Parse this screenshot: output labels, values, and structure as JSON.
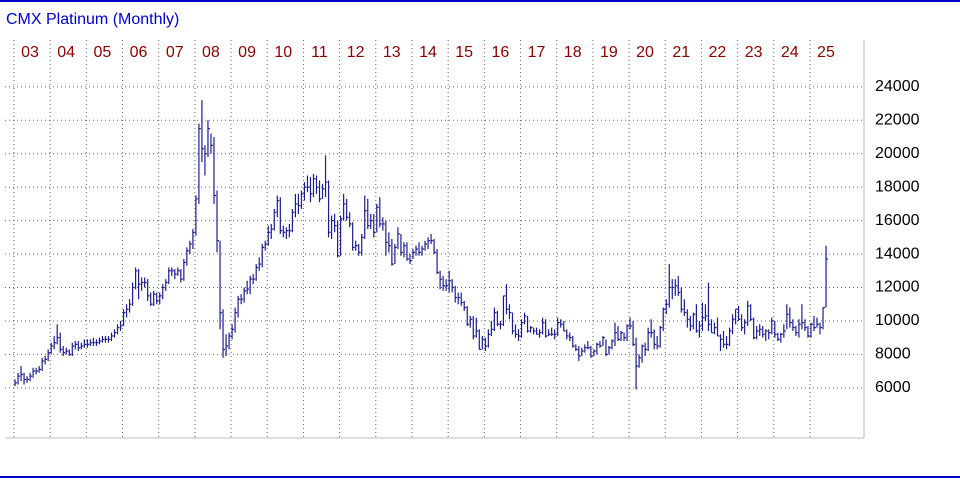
{
  "chart_data": {
    "type": "ohlc",
    "title": "CMX Platinum (Monthly)",
    "color": "#1c1c8e",
    "grid": true,
    "ylim": [
      3000,
      26800
    ],
    "yticks": [
      6000,
      8000,
      10000,
      12000,
      14000,
      16000,
      18000,
      20000,
      22000,
      24000
    ],
    "xticks": [
      {
        "value": 0,
        "label": "03"
      },
      {
        "value": 12,
        "label": "04"
      },
      {
        "value": 24,
        "label": "05"
      },
      {
        "value": 36,
        "label": "06"
      },
      {
        "value": 48,
        "label": "07"
      },
      {
        "value": 60,
        "label": "08"
      },
      {
        "value": 72,
        "label": "09"
      },
      {
        "value": 84,
        "label": "10"
      },
      {
        "value": 96,
        "label": "11"
      },
      {
        "value": 108,
        "label": "12"
      },
      {
        "value": 120,
        "label": "13"
      },
      {
        "value": 132,
        "label": "14"
      },
      {
        "value": 144,
        "label": "15"
      },
      {
        "value": 156,
        "label": "16"
      },
      {
        "value": 168,
        "label": "17"
      },
      {
        "value": 180,
        "label": "18"
      },
      {
        "value": 192,
        "label": "19"
      },
      {
        "value": 204,
        "label": "20"
      },
      {
        "value": 216,
        "label": "21"
      },
      {
        "value": 228,
        "label": "22"
      },
      {
        "value": 240,
        "label": "23"
      },
      {
        "value": 252,
        "label": "24"
      },
      {
        "value": 264,
        "label": "25"
      }
    ],
    "high": [
      6500,
      6900,
      7300,
      6900,
      6700,
      6900,
      7200,
      7200,
      7300,
      7800,
      7900,
      8300,
      8700,
      9100,
      9800,
      9300,
      8500,
      8400,
      8300,
      8700,
      8800,
      8800,
      8700,
      8900,
      8900,
      8900,
      9000,
      8900,
      9000,
      9100,
      9100,
      9100,
      9300,
      9500,
      9800,
      10000,
      10700,
      11000,
      11300,
      12300,
      13200,
      13100,
      12600,
      12600,
      12500,
      11700,
      11800,
      11700,
      11700,
      12200,
      12500,
      13200,
      13200,
      13100,
      13200,
      13100,
      13700,
      14400,
      14800,
      15500,
      17500,
      21800,
      23200,
      20500,
      22000,
      21200,
      21000,
      17800,
      14800,
      10700,
      9200,
      9300,
      9800,
      10800,
      11500,
      11600,
      12000,
      12400,
      12700,
      12800,
      13400,
      13800,
      14600,
      14800,
      15700,
      15800,
      16700,
      17500,
      17400,
      15700,
      15600,
      15800,
      16700,
      17600,
      17600,
      17800,
      18300,
      18700,
      18600,
      18800,
      18700,
      18400,
      18200,
      19900,
      18400,
      16300,
      16400,
      16000,
      16300,
      17600,
      17300,
      16500,
      15900,
      14800,
      14600,
      15200,
      17500,
      17300,
      16400,
      16400,
      17000,
      17400,
      16200,
      16000,
      15300,
      14900,
      14600,
      15600,
      15200,
      14700,
      14700,
      14000,
      14300,
      14500,
      14700,
      14500,
      14800,
      15000,
      15200,
      14900,
      14300,
      13000,
      12700,
      12500,
      13000,
      12500,
      12100,
      11700,
      11700,
      11200,
      10900,
      10300,
      10300,
      10200,
      9500,
      9100,
      9000,
      9500,
      10000,
      10800,
      10600,
      10000,
      11500,
      12200,
      11000,
      10500,
      9800,
      9500,
      10100,
      10500,
      10300,
      9700,
      9600,
      9600,
      9500,
      10200,
      10100,
      9500,
      9600,
      9500,
      10200,
      10100,
      10000,
      9500,
      9300,
      9100,
      8600,
      8500,
      8400,
      8600,
      8800,
      8500,
      8300,
      8700,
      8800,
      9100,
      8900,
      8500,
      8900,
      9900,
      9700,
      9400,
      9300,
      9800,
      10200,
      10000,
      9000,
      8000,
      8600,
      8700,
      9600,
      10100,
      9500,
      9100,
      9700,
      10800,
      11300,
      13400,
      12500,
      12500,
      12700,
      12000,
      11300,
      10700,
      10300,
      10500,
      11000,
      10000,
      11100,
      11000,
      12300,
      10100,
      9900,
      10200,
      9200,
      9400,
      9100,
      9600,
      10400,
      10700,
      10900,
      10400,
      10100,
      11200,
      11000,
      10200,
      9700,
      9800,
      9700,
      9500,
      9500,
      10200,
      10000,
      9300,
      9300,
      9800,
      11000,
      10800,
      10100,
      9700,
      10100,
      11000,
      10100,
      9700,
      9900,
      10300,
      10200,
      9900,
      10800,
      14500
    ],
    "low": [
      6100,
      6200,
      6400,
      6200,
      6300,
      6400,
      6600,
      6800,
      6900,
      7000,
      7400,
      7600,
      8000,
      8300,
      8600,
      8100,
      7900,
      8000,
      7900,
      7900,
      8300,
      8200,
      8300,
      8400,
      8400,
      8500,
      8500,
      8500,
      8600,
      8700,
      8700,
      8700,
      8800,
      9000,
      9200,
      9400,
      9700,
      10200,
      10500,
      10900,
      11900,
      11300,
      11800,
      12000,
      11200,
      10900,
      10900,
      11000,
      11000,
      11300,
      11800,
      12200,
      12700,
      12500,
      12700,
      12300,
      12400,
      13300,
      14000,
      14300,
      15100,
      17000,
      19500,
      18700,
      19800,
      20000,
      17000,
      14100,
      9500,
      7800,
      7900,
      8300,
      8900,
      9300,
      10200,
      11000,
      11100,
      11600,
      11600,
      12200,
      12400,
      13000,
      13200,
      14200,
      14500,
      14900,
      15400,
      16200,
      15200,
      15000,
      14900,
      15000,
      15300,
      16200,
      16400,
      16700,
      17200,
      17700,
      17100,
      17400,
      17600,
      17100,
      17300,
      17400,
      15000,
      14900,
      15300,
      13800,
      13900,
      16000,
      16000,
      15600,
      14200,
      14200,
      13900,
      13900,
      14900,
      15500,
      15500,
      15000,
      15300,
      15600,
      15400,
      13900,
      14100,
      13300,
      13400,
      14300,
      13900,
      13800,
      13600,
      13400,
      13700,
      13900,
      13900,
      13900,
      14200,
      14300,
      14600,
      14000,
      12800,
      11900,
      11800,
      11800,
      11700,
      11700,
      11100,
      11000,
      10900,
      10600,
      9700,
      9600,
      8900,
      9000,
      8300,
      8300,
      8200,
      8400,
      9100,
      9400,
      9700,
      9500,
      9700,
      10400,
      10100,
      9200,
      9000,
      8800,
      9000,
      9800,
      9300,
      9300,
      9200,
      9200,
      9000,
      9200,
      9000,
      9100,
      9100,
      8900,
      9100,
      9600,
      9400,
      8900,
      8800,
      8400,
      8200,
      7600,
      7900,
      8100,
      8300,
      7800,
      7900,
      8000,
      8400,
      8500,
      7900,
      8000,
      8300,
      8500,
      8800,
      8800,
      8800,
      8800,
      9500,
      8500,
      5900,
      7200,
      7500,
      7900,
      8200,
      9000,
      8300,
      8300,
      8400,
      9400,
      10400,
      10800,
      11300,
      11500,
      11500,
      10500,
      10300,
      9600,
      9400,
      9500,
      9300,
      9000,
      9400,
      10000,
      9400,
      9300,
      9200,
      9100,
      8200,
      8400,
      8300,
      8500,
      9200,
      9800,
      10000,
      9400,
      9200,
      9700,
      10000,
      8900,
      8900,
      9100,
      9000,
      8800,
      8900,
      9200,
      9000,
      8800,
      8700,
      9000,
      9500,
      9600,
      9400,
      9100,
      9000,
      9500,
      9400,
      9000,
      9000,
      9400,
      9600,
      9200,
      9500,
      10800
    ],
    "close": [
      6300,
      6700,
      6800,
      6500,
      6500,
      6700,
      7000,
      7000,
      7100,
      7600,
      7700,
      8100,
      8500,
      8700,
      9000,
      8300,
      8100,
      8200,
      8000,
      8500,
      8600,
      8400,
      8500,
      8600,
      8600,
      8700,
      8700,
      8700,
      8800,
      8900,
      8900,
      8900,
      9100,
      9300,
      9600,
      9700,
      10500,
      10700,
      11000,
      12000,
      13000,
      12200,
      12300,
      12300,
      11500,
      11000,
      11600,
      11200,
      11500,
      12000,
      12300,
      13000,
      13000,
      12800,
      13000,
      12500,
      13500,
      14200,
      14600,
      15300,
      17300,
      21500,
      20300,
      20000,
      21500,
      20500,
      17500,
      14800,
      10500,
      8300,
      8500,
      9100,
      9500,
      10500,
      11300,
      11300,
      11800,
      11900,
      12500,
      12500,
      13200,
      13400,
      14400,
      14600,
      15300,
      15500,
      16500,
      17200,
      15400,
      15300,
      15400,
      15400,
      16500,
      17000,
      16900,
      17600,
      18000,
      18000,
      17600,
      18500,
      18000,
      17300,
      17900,
      18300,
      15300,
      16000,
      15700,
      13900,
      16100,
      17000,
      16200,
      15800,
      14400,
      14500,
      14100,
      15000,
      16600,
      15700,
      16000,
      15300,
      16800,
      15800,
      15800,
      14700,
      14500,
      13400,
      14400,
      15200,
      14100,
      14500,
      13700,
      13600,
      14100,
      14300,
      14100,
      14300,
      14600,
      14800,
      14800,
      14100,
      12900,
      12500,
      12100,
      12100,
      12400,
      12000,
      11400,
      11400,
      11100,
      10800,
      9800,
      10100,
      9100,
      9400,
      8300,
      8900,
      8500,
      9200,
      9500,
      10500,
      9800,
      9800,
      11500,
      10700,
      10500,
      9400,
      9200,
      9100,
      9900,
      10300,
      9400,
      9600,
      9400,
      9200,
      9300,
      9900,
      9100,
      9200,
      9200,
      9200,
      9900,
      9800,
      9400,
      9100,
      9000,
      8500,
      8300,
      7900,
      8200,
      8400,
      8400,
      7900,
      8200,
      8600,
      8500,
      9000,
      8000,
      8400,
      8800,
      9300,
      8900,
      9300,
      9000,
      9700,
      9700,
      8600,
      7300,
      7800,
      8500,
      8300,
      9300,
      9300,
      8600,
      8500,
      9600,
      10700,
      11000,
      12000,
      12000,
      12100,
      11700,
      10700,
      10500,
      10100,
      9700,
      10400,
      9400,
      9700,
      10200,
      10300,
      9800,
      9300,
      9600,
      9100,
      8900,
      8600,
      8600,
      9400,
      10100,
      10700,
      10100,
      9600,
      9900,
      10900,
      10100,
      9000,
      9400,
      9500,
      9200,
      9400,
      9300,
      10000,
      9200,
      8900,
      9200,
      9400,
      10400,
      9900,
      9600,
      9300,
      9800,
      9900,
      9600,
      9100,
      9800,
      9600,
      9800,
      9600,
      10800,
      13700
    ]
  }
}
